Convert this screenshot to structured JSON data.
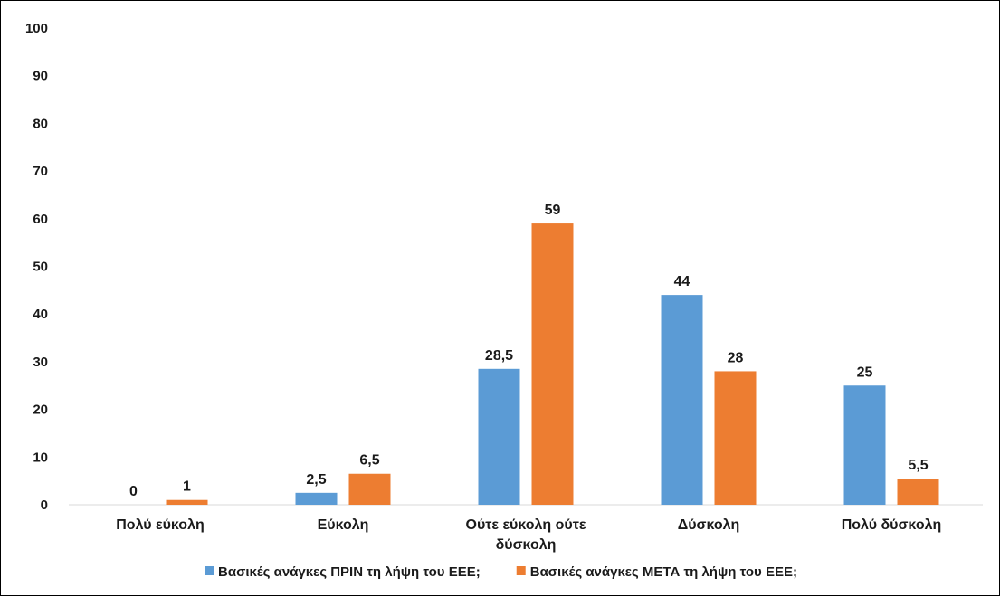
{
  "chart_data": {
    "type": "bar",
    "title": "",
    "xlabel": "",
    "ylabel": "",
    "ylim": [
      0,
      100
    ],
    "yticks": [
      0,
      10,
      20,
      30,
      40,
      50,
      60,
      70,
      80,
      90,
      100
    ],
    "categories": [
      [
        "Πολύ εύκολη"
      ],
      [
        "Εύκολη"
      ],
      [
        "Ούτε εύκολη ούτε",
        "δύσκολη"
      ],
      [
        "Δύσκολη"
      ],
      [
        "Πολύ δύσκολη"
      ]
    ],
    "series": [
      {
        "name": "Βασικές ανάγκες  ΠΡΙΝ τη λήψη του ΕΕΕ;",
        "color": "#5B9BD5",
        "values": [
          0,
          2.5,
          28.5,
          44,
          25
        ],
        "labels": [
          "0",
          "2,5",
          "28,5",
          "44",
          "25"
        ]
      },
      {
        "name": "Βασικές ανάγκες  ΜΕΤΑ τη λήψη του ΕΕΕ;",
        "color": "#ED7D31",
        "values": [
          1,
          6.5,
          59,
          28,
          5.5
        ],
        "labels": [
          "1",
          "6,5",
          "59",
          "28",
          "5,5"
        ]
      }
    ],
    "grid": false,
    "legend": "bottom",
    "data_labels": true
  }
}
